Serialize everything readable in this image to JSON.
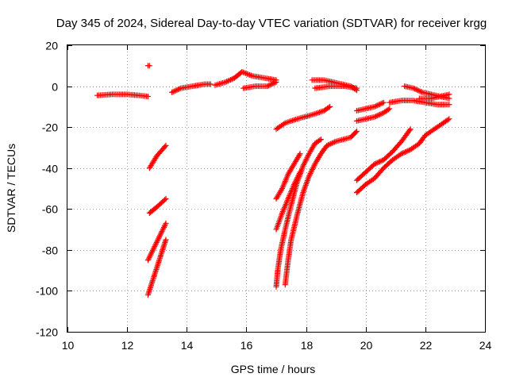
{
  "chart_data": {
    "type": "scatter",
    "title": "Day 345 of 2024, Sidereal Day-to-day VTEC variation (SDTVAR) for receiver krgg",
    "xlabel": "GPS time / hours",
    "ylabel": "SDTVAR / TECUs",
    "xlim": [
      10,
      24
    ],
    "ylim": [
      -120,
      20
    ],
    "xticks": [
      10,
      12,
      14,
      16,
      18,
      20,
      22,
      24
    ],
    "yticks": [
      20,
      0,
      -20,
      -40,
      -60,
      -80,
      -100,
      -120
    ],
    "grid": true,
    "marker": "plus",
    "marker_color": "#ff0000",
    "series": [
      {
        "points": [
          [
            11.0,
            -4.5
          ],
          [
            11.5,
            -4
          ],
          [
            12.0,
            -4
          ],
          [
            12.4,
            -4.5
          ],
          [
            12.7,
            -5
          ]
        ]
      },
      {
        "points": [
          [
            12.7,
            10
          ],
          [
            12.75,
            10
          ]
        ]
      },
      {
        "points": [
          [
            13.5,
            -3
          ],
          [
            13.8,
            -1
          ],
          [
            14.2,
            0
          ],
          [
            14.6,
            1
          ],
          [
            14.8,
            1
          ]
        ]
      },
      {
        "points": [
          [
            14.95,
            0.5
          ],
          [
            15.3,
            2
          ],
          [
            15.6,
            4
          ],
          [
            15.85,
            7
          ],
          [
            16.2,
            5
          ],
          [
            16.6,
            4
          ],
          [
            17.0,
            3
          ]
        ]
      },
      {
        "points": [
          [
            15.9,
            -1
          ],
          [
            16.3,
            0
          ],
          [
            16.7,
            0
          ],
          [
            17.0,
            2
          ]
        ]
      },
      {
        "points": [
          [
            18.2,
            3
          ],
          [
            18.6,
            3
          ],
          [
            18.9,
            2
          ],
          [
            19.2,
            1
          ],
          [
            19.5,
            0
          ],
          [
            19.7,
            -2
          ]
        ]
      },
      {
        "points": [
          [
            18.3,
            -1
          ],
          [
            18.8,
            0
          ],
          [
            19.3,
            0
          ],
          [
            19.7,
            -1
          ]
        ]
      },
      {
        "points": [
          [
            12.75,
            -40
          ],
          [
            13.0,
            -34
          ],
          [
            13.3,
            -29
          ]
        ]
      },
      {
        "points": [
          [
            12.75,
            -62
          ],
          [
            13.0,
            -59
          ],
          [
            13.3,
            -55
          ]
        ]
      },
      {
        "points": [
          [
            12.7,
            -102
          ],
          [
            12.9,
            -93
          ],
          [
            13.1,
            -84
          ],
          [
            13.3,
            -75
          ]
        ]
      },
      {
        "points": [
          [
            12.7,
            -85
          ],
          [
            12.9,
            -79
          ],
          [
            13.1,
            -73
          ],
          [
            13.3,
            -67
          ]
        ]
      },
      {
        "points": [
          [
            17.0,
            -21
          ],
          [
            17.3,
            -18
          ],
          [
            17.7,
            -16
          ],
          [
            18.2,
            -14
          ],
          [
            18.6,
            -12
          ],
          [
            18.8,
            -10
          ]
        ]
      },
      {
        "points": [
          [
            17.0,
            -55
          ],
          [
            17.2,
            -50
          ],
          [
            17.4,
            -43
          ],
          [
            17.6,
            -38
          ],
          [
            17.8,
            -33
          ]
        ]
      },
      {
        "points": [
          [
            17.0,
            -98
          ],
          [
            17.05,
            -90
          ],
          [
            17.15,
            -80
          ],
          [
            17.3,
            -70
          ],
          [
            17.5,
            -58
          ],
          [
            17.7,
            -47
          ],
          [
            17.9,
            -39
          ],
          [
            18.1,
            -33
          ],
          [
            18.3,
            -28
          ],
          [
            18.5,
            -26
          ]
        ]
      },
      {
        "points": [
          [
            17.3,
            -97
          ],
          [
            17.4,
            -85
          ],
          [
            17.5,
            -75
          ],
          [
            17.7,
            -63
          ],
          [
            17.9,
            -52
          ],
          [
            18.1,
            -44
          ],
          [
            18.3,
            -38
          ],
          [
            18.5,
            -33
          ],
          [
            18.7,
            -29
          ],
          [
            19.0,
            -27
          ],
          [
            19.5,
            -25
          ],
          [
            19.7,
            -22
          ]
        ]
      },
      {
        "points": [
          [
            17.0,
            -70
          ],
          [
            17.2,
            -62
          ],
          [
            17.4,
            -55
          ],
          [
            17.6,
            -48
          ],
          [
            17.8,
            -42
          ]
        ]
      },
      {
        "points": [
          [
            19.7,
            -12
          ],
          [
            20.0,
            -11
          ],
          [
            20.3,
            -10
          ],
          [
            20.6,
            -8
          ]
        ]
      },
      {
        "points": [
          [
            19.7,
            -17
          ],
          [
            20.0,
            -16
          ],
          [
            20.3,
            -15
          ],
          [
            20.6,
            -13
          ],
          [
            20.8,
            -11
          ]
        ]
      },
      {
        "points": [
          [
            19.7,
            -46
          ],
          [
            20.0,
            -42
          ],
          [
            20.3,
            -38
          ],
          [
            20.6,
            -36
          ],
          [
            20.9,
            -32
          ],
          [
            21.2,
            -27
          ],
          [
            21.5,
            -21
          ]
        ]
      },
      {
        "points": [
          [
            19.7,
            -52
          ],
          [
            20.0,
            -48
          ],
          [
            20.3,
            -45
          ],
          [
            20.6,
            -40
          ],
          [
            20.9,
            -36
          ],
          [
            21.2,
            -33
          ],
          [
            21.5,
            -31
          ],
          [
            21.8,
            -28
          ],
          [
            22.0,
            -24
          ],
          [
            22.3,
            -21
          ],
          [
            22.6,
            -18
          ],
          [
            22.8,
            -16
          ]
        ]
      },
      {
        "points": [
          [
            20.8,
            -8
          ],
          [
            21.2,
            -7
          ],
          [
            21.6,
            -7
          ],
          [
            22.0,
            -8
          ],
          [
            22.4,
            -9
          ],
          [
            22.8,
            -9
          ]
        ]
      },
      {
        "points": [
          [
            21.3,
            0
          ],
          [
            21.6,
            -1
          ],
          [
            21.9,
            -3
          ],
          [
            22.2,
            -4
          ],
          [
            22.5,
            -5
          ],
          [
            22.8,
            -4
          ]
        ]
      },
      {
        "points": [
          [
            21.8,
            -6
          ],
          [
            22.2,
            -6
          ],
          [
            22.5,
            -5
          ],
          [
            22.8,
            -6
          ]
        ]
      }
    ]
  }
}
